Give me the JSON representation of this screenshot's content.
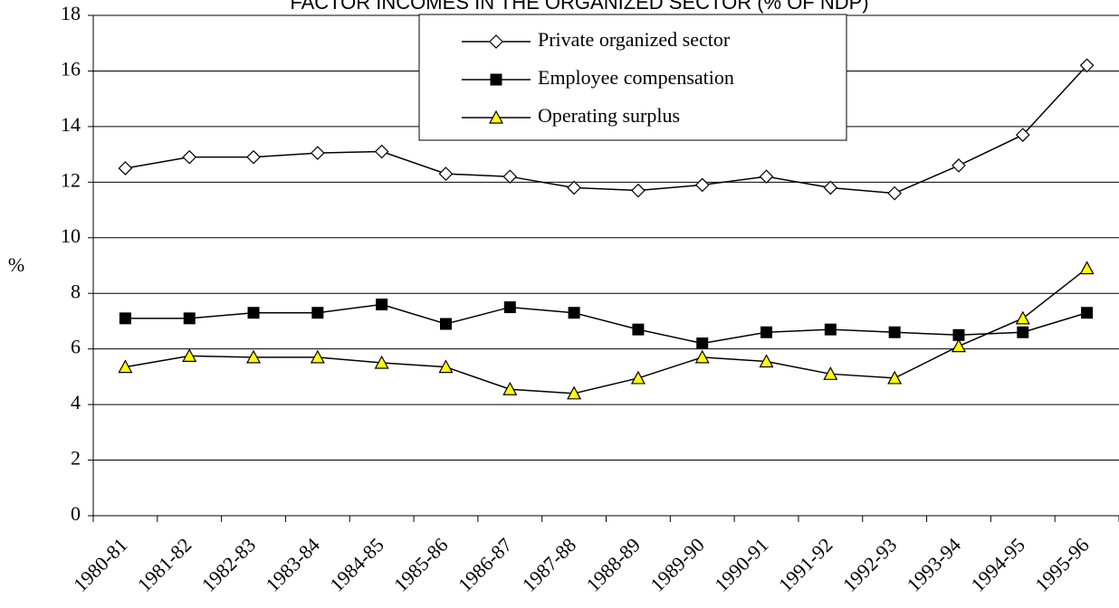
{
  "chart_data": {
    "type": "line",
    "title": "FACTOR INCOMES IN THE ORGANIZED SECTOR (% OF NDP)",
    "y_label": "%",
    "categories": [
      "1980-81",
      "1981-82",
      "1982-83",
      "1983-84",
      "1984-85",
      "1985-86",
      "1986-87",
      "1987-88",
      "1988-89",
      "1989-90",
      "1990-91",
      "1991-92",
      "1992-93",
      "1993-94",
      "1994-95",
      "1995-96"
    ],
    "series": [
      {
        "name": "Private organized sector",
        "marker": "diamond",
        "color": "#ffffff",
        "values": [
          12.5,
          12.9,
          12.9,
          13.05,
          13.1,
          12.3,
          12.2,
          11.8,
          11.7,
          11.9,
          12.2,
          11.8,
          11.6,
          12.6,
          13.7,
          16.2
        ]
      },
      {
        "name": "Employee compensation",
        "marker": "square",
        "color": "#000000",
        "values": [
          7.1,
          7.1,
          7.3,
          7.3,
          7.6,
          6.9,
          7.5,
          7.3,
          6.7,
          6.2,
          6.6,
          6.7,
          6.6,
          6.5,
          6.6,
          7.3
        ]
      },
      {
        "name": "Operating surplus",
        "marker": "triangle",
        "color": "#ffff00",
        "values": [
          5.35,
          5.75,
          5.7,
          5.7,
          5.5,
          5.35,
          4.55,
          4.4,
          4.95,
          5.7,
          5.55,
          5.1,
          4.95,
          6.1,
          7.1,
          8.9
        ]
      }
    ],
    "ylim": [
      0,
      18
    ],
    "yticks": [
      0,
      2,
      4,
      6,
      8,
      10,
      12,
      14,
      16,
      18
    ],
    "grid": true,
    "legend": "top"
  }
}
